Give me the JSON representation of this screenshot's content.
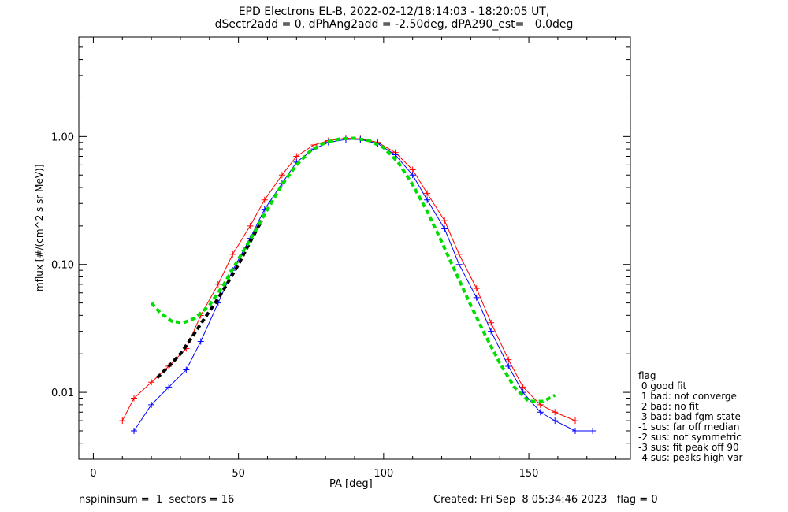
{
  "chart_data": {
    "type": "line",
    "title": "EPD Electrons EL-B, 2022-02-12/18:14:03 - 18:20:05 UT,",
    "subtitle": "dSectr2add = 0, dPhAng2add = -2.50deg, dPA290_est=   0.0deg",
    "xlabel": "PA [deg]",
    "ylabel": "mflux [#/(cm^2 s sr MeV)]",
    "xlim": [
      -5,
      185
    ],
    "ylim_log": [
      0.003,
      6
    ],
    "y_scale": "log",
    "x_ticks": [
      "0",
      "50",
      "100",
      "150"
    ],
    "y_ticks": [
      "0.01",
      "0.10",
      "1.00"
    ],
    "series": [
      {
        "color": "#ff0000",
        "style": "line-plus",
        "x": [
          10,
          14,
          20,
          26,
          32,
          37,
          43,
          48,
          54,
          59,
          65,
          70,
          76,
          81,
          87,
          92,
          98,
          104,
          110,
          115,
          121,
          126,
          132,
          137,
          143,
          148,
          154,
          159,
          166
        ],
        "y": [
          0.006,
          0.009,
          0.012,
          0.016,
          0.022,
          0.04,
          0.07,
          0.12,
          0.2,
          0.32,
          0.5,
          0.7,
          0.86,
          0.93,
          0.97,
          0.96,
          0.9,
          0.75,
          0.55,
          0.36,
          0.22,
          0.12,
          0.065,
          0.035,
          0.018,
          0.011,
          0.008,
          0.007,
          0.006
        ]
      },
      {
        "color": "#0000ff",
        "style": "line-plus",
        "x": [
          14,
          20,
          26,
          32,
          37,
          43,
          48,
          54,
          59,
          65,
          70,
          76,
          81,
          87,
          92,
          98,
          104,
          110,
          115,
          121,
          126,
          132,
          137,
          143,
          148,
          154,
          159,
          166,
          172
        ],
        "y": [
          0.005,
          0.008,
          0.011,
          0.015,
          0.025,
          0.05,
          0.09,
          0.16,
          0.27,
          0.43,
          0.63,
          0.8,
          0.9,
          0.95,
          0.95,
          0.88,
          0.72,
          0.5,
          0.32,
          0.19,
          0.1,
          0.055,
          0.03,
          0.016,
          0.01,
          0.007,
          0.006,
          0.005,
          0.005
        ]
      },
      {
        "color": "#000000",
        "style": "dashed",
        "x": [
          22,
          26,
          30,
          34,
          38,
          42,
          46,
          50,
          54,
          58
        ],
        "y": [
          0.013,
          0.016,
          0.02,
          0.027,
          0.037,
          0.05,
          0.07,
          0.1,
          0.15,
          0.22
        ]
      },
      {
        "color": "#00dd00",
        "style": "dashed",
        "x": [
          20,
          23,
          27,
          31,
          35,
          40,
          45,
          50,
          55,
          60,
          65,
          70,
          75,
          80,
          85,
          90,
          95,
          100,
          105,
          110,
          115,
          120,
          125,
          130,
          135,
          140,
          145,
          150,
          155,
          159
        ],
        "y": [
          0.05,
          0.042,
          0.036,
          0.035,
          0.038,
          0.048,
          0.07,
          0.11,
          0.17,
          0.27,
          0.42,
          0.6,
          0.78,
          0.9,
          0.96,
          0.97,
          0.93,
          0.82,
          0.63,
          0.42,
          0.26,
          0.15,
          0.085,
          0.048,
          0.028,
          0.017,
          0.011,
          0.0085,
          0.0085,
          0.0095
        ]
      }
    ],
    "legend": {
      "placement": "right",
      "title": "flag",
      "entries": [
        " 0 good fit",
        " 1 bad: not converge",
        " 2 bad: no fit",
        " 3 bad: bad fgm state",
        "-1 sus: far off median",
        "-2 sus: not symmetric",
        "-3 sus: fit peak off 90",
        "-4 sus: peaks high var"
      ]
    }
  },
  "footer": {
    "left": "nspininsum =  1  sectors = 16",
    "right": "Created: Fri Sep  8 05:34:46 2023   flag = 0"
  }
}
